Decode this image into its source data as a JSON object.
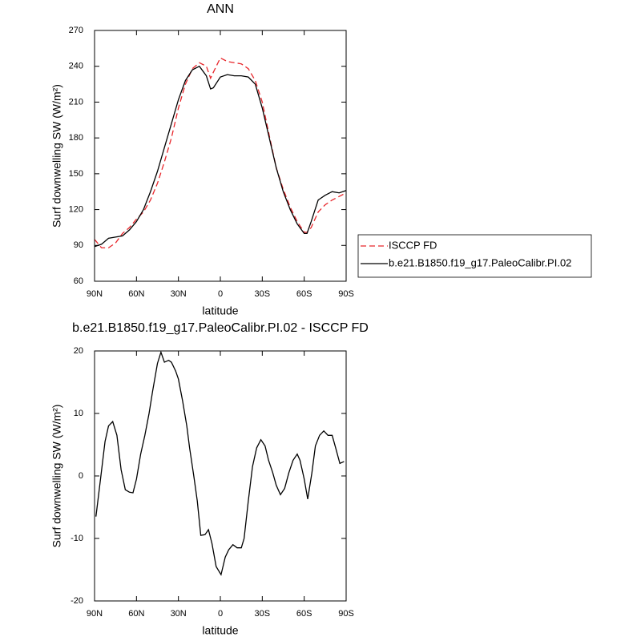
{
  "chart_data": [
    {
      "type": "line",
      "title": "ANN",
      "xlabel": "latitude",
      "ylabel": "Surf downwelling SW (W/m²)",
      "x": [
        90,
        85,
        80,
        75,
        70,
        65,
        60,
        55,
        50,
        45,
        40,
        35,
        30,
        25,
        20,
        15,
        10,
        7,
        5,
        0,
        -5,
        -10,
        -15,
        -20,
        -25,
        -30,
        -35,
        -40,
        -45,
        -50,
        -55,
        -60,
        -62,
        -65,
        -70,
        -75,
        -80,
        -85,
        -90
      ],
      "series": [
        {
          "name": "ISCCP FD",
          "color": "#e8262b",
          "dash": true,
          "values": [
            95,
            88,
            88,
            92,
            100,
            105,
            112,
            118,
            128,
            142,
            160,
            180,
            205,
            225,
            238,
            243,
            240,
            230,
            235,
            247,
            244,
            243,
            242,
            238,
            228,
            210,
            182,
            155,
            137,
            122,
            110,
            101,
            101,
            105,
            118,
            124,
            128,
            131,
            134
          ]
        },
        {
          "name": "b.e21.B1850.f19_g17.PaleoCalibr.PI.02",
          "color": "#000000",
          "dash": false,
          "values": [
            89,
            91,
            96,
            97,
            98,
            103,
            110,
            120,
            135,
            152,
            172,
            192,
            212,
            228,
            237,
            240,
            232,
            221,
            222,
            231,
            233,
            232,
            232,
            231,
            225,
            205,
            180,
            155,
            135,
            120,
            108,
            100,
            100,
            110,
            128,
            132,
            135,
            134,
            136
          ]
        }
      ],
      "xlim": [
        90,
        -90
      ],
      "xticks": [
        {
          "value": 90,
          "label": "90N"
        },
        {
          "value": 60,
          "label": "60N"
        },
        {
          "value": 30,
          "label": "30N"
        },
        0,
        {
          "value": -30,
          "label": "30S"
        },
        {
          "value": -60,
          "label": "60S"
        },
        {
          "value": -90,
          "label": "90S"
        }
      ],
      "ylim": [
        60,
        270
      ],
      "yticks": [
        60,
        90,
        120,
        150,
        180,
        210,
        240,
        270
      ],
      "legend": "right"
    },
    {
      "type": "line",
      "title": "b.e21.B1850.f19_g17.PaleoCalibr.PI.02 - ISCCP FD",
      "xlabel": "latitude",
      "ylabel": "Surf downwelling SW (W/m²)",
      "x": [
        89,
        86,
        82.5,
        80,
        77,
        74,
        71,
        68,
        65,
        62.5,
        60,
        57,
        54,
        51,
        48.5,
        45,
        42.5,
        40,
        37,
        35,
        32,
        30,
        27,
        24,
        22,
        19,
        16.5,
        14,
        11,
        8.5,
        6,
        3,
        -0.5,
        -3.5,
        -6,
        -9,
        -12,
        -15,
        -17,
        -20,
        -23,
        -26,
        -29,
        -32,
        -34.5,
        -37.5,
        -40,
        -43,
        -46,
        -49,
        -52,
        -55,
        -57,
        -60,
        -62.5,
        -65.5,
        -68,
        -71,
        -74,
        -77,
        -80,
        -82.5,
        -85.5,
        -88.5
      ],
      "series": [
        {
          "color": "#000000",
          "dash": false,
          "values": [
            -6.5,
            -1,
            5.5,
            8,
            8.7,
            6.5,
            1,
            -2.2,
            -2.6,
            -2.7,
            -0.5,
            3.5,
            6.5,
            10,
            13.5,
            18,
            19.8,
            18.2,
            18.5,
            18.2,
            16.8,
            15.5,
            12,
            8,
            4.5,
            0,
            -4,
            -9.5,
            -9.4,
            -8.6,
            -10.8,
            -14.5,
            -15.8,
            -13,
            -11.8,
            -11,
            -11.5,
            -11.5,
            -10,
            -4,
            1.5,
            4.5,
            5.8,
            4.8,
            2.5,
            0.5,
            -1.5,
            -3,
            -2,
            0.5,
            2.5,
            3.5,
            2.5,
            -0.5,
            -3.7,
            0.5,
            4.8,
            6.5,
            7.2,
            6.5,
            6.5,
            4.5,
            2,
            2.3
          ]
        }
      ],
      "xlim": [
        90,
        -90
      ],
      "xticks": [
        {
          "value": 90,
          "label": "90N"
        },
        {
          "value": 60,
          "label": "60N"
        },
        {
          "value": 30,
          "label": "30N"
        },
        0,
        {
          "value": -30,
          "label": "30S"
        },
        {
          "value": -60,
          "label": "60S"
        },
        {
          "value": -90,
          "label": "90S"
        }
      ],
      "ylim": [
        -20,
        20
      ],
      "yticks": [
        -20,
        -10,
        0,
        10,
        20
      ]
    }
  ]
}
